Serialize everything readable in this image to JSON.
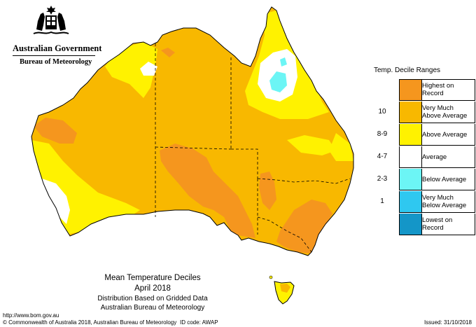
{
  "header": {
    "government": "Australian Government",
    "bureau": "Bureau of Meteorology"
  },
  "colors": {
    "highest_on_record": "#f5961e",
    "very_much_above_average": "#f8b800",
    "above_average": "#fff200",
    "average": "#ffffff",
    "below_average": "#6cf5f5",
    "very_much_below_average": "#2fc8f0",
    "lowest_on_record": "#1496c8",
    "land_outline": "#000000"
  },
  "legend": {
    "title": "Temp. Decile Ranges",
    "items": [
      {
        "number": "",
        "label_line1": "Highest on",
        "label_line2": "Record",
        "color_key": "highest_on_record"
      },
      {
        "number": "10",
        "label_line1": "Very Much",
        "label_line2": "Above Average",
        "color_key": "very_much_above_average"
      },
      {
        "number": "8-9",
        "label_line1": "Above Average",
        "label_line2": "",
        "color_key": "above_average"
      },
      {
        "number": "4-7",
        "label_line1": "Average",
        "label_line2": "",
        "color_key": "average"
      },
      {
        "number": "2-3",
        "label_line1": "Below Average",
        "label_line2": "",
        "color_key": "below_average"
      },
      {
        "number": "1",
        "label_line1": "Very Much",
        "label_line2": "Below Average",
        "color_key": "very_much_below_average"
      },
      {
        "number": "",
        "label_line1": "Lowest on",
        "label_line2": "Record",
        "color_key": "lowest_on_record"
      }
    ]
  },
  "caption": {
    "title": "Mean Temperature Deciles",
    "period": "April 2018",
    "method": "Distribution Based on Gridded Data",
    "source": "Australian Bureau of Meteorology"
  },
  "footer": {
    "url": "http://www.bom.gov.au",
    "copyright": "© Commonwealth of Australia 2018, Australian Bureau of Meteorology",
    "id_code": "ID code: AWAP",
    "issued": "Issued: 31/10/2018"
  }
}
